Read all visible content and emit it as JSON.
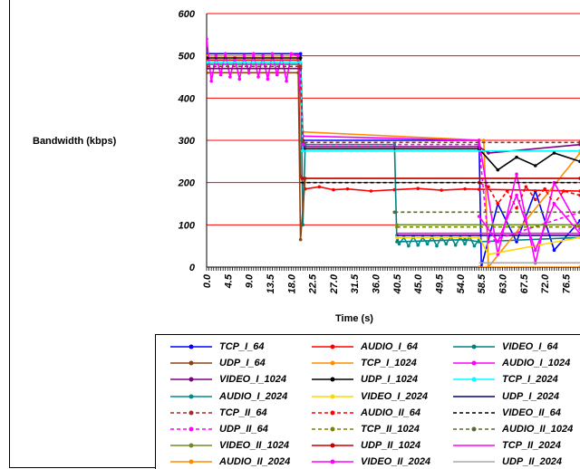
{
  "chart_data": {
    "type": "line",
    "ylabel": "Bandwidth (kbps)",
    "xlabel": "Time (s)",
    "ylim": [
      0,
      600
    ],
    "xlim": [
      0,
      79.5
    ],
    "yticks": [
      "0",
      "100",
      "200",
      "300",
      "400",
      "500",
      "600"
    ],
    "xticks": [
      "0.0",
      "4.5",
      "9.0",
      "13.5",
      "18.0",
      "22.5",
      "27.0",
      "31.5",
      "36.0",
      "40.5",
      "45.0",
      "49.5",
      "54.0",
      "58.5",
      "63.0",
      "67.5",
      "72.0",
      "76.5"
    ],
    "grid": true,
    "grid_color": "#ff0000",
    "legend_position": "bottom-right",
    "series": [
      {
        "name": "TCP_I_64",
        "color": "#0000ff",
        "dash": "solid",
        "marker": "diamond",
        "x": [
          0,
          20,
          20.5,
          58,
          58.5,
          62,
          66,
          70,
          74,
          79.5
        ],
        "y": [
          505,
          505,
          300,
          300,
          0,
          150,
          60,
          180,
          40,
          110
        ]
      },
      {
        "name": "AUDIO_I_64",
        "color": "#ff0000",
        "dash": "solid",
        "marker": "square",
        "x": [
          0,
          19.5,
          20,
          21,
          24,
          27,
          30,
          35,
          40,
          45,
          50,
          55,
          58,
          79.5
        ],
        "y": [
          490,
          490,
          215,
          185,
          190,
          183,
          185,
          180,
          183,
          186,
          182,
          185,
          184,
          180
        ]
      },
      {
        "name": "VIDEO_I_64",
        "color": "#008080",
        "dash": "solid",
        "marker": "triangle",
        "x": [
          0,
          20,
          20.5,
          21,
          40,
          40.5,
          55,
          58,
          79.5
        ],
        "y": [
          480,
          480,
          100,
          290,
          290,
          60,
          65,
          60,
          70
        ]
      },
      {
        "name": "UDP_I_64",
        "color": "#8b4513",
        "dash": "solid",
        "marker": "x",
        "x": [
          0,
          19.5,
          20,
          21,
          79.5
        ],
        "y": [
          460,
          460,
          65,
          210,
          210
        ]
      },
      {
        "name": "TCP_I_1024",
        "color": "#ff8c00",
        "dash": "solid",
        "marker": "star",
        "x": [
          0,
          19.5,
          20.5,
          59,
          60,
          79.5
        ],
        "y": [
          500,
          500,
          320,
          300,
          0,
          270
        ]
      },
      {
        "name": "AUDIO_I_1024",
        "color": "#ff00ff",
        "dash": "solid",
        "marker": "circle",
        "x": [
          0,
          1,
          2,
          3,
          4,
          5,
          6,
          7,
          8,
          9,
          10,
          11,
          12,
          13,
          14,
          15,
          16,
          17,
          18,
          19.5,
          20.5,
          58,
          62,
          66,
          70,
          74,
          79.5
        ],
        "y": [
          540,
          440,
          500,
          455,
          505,
          450,
          495,
          445,
          500,
          460,
          505,
          450,
          500,
          445,
          505,
          455,
          500,
          440,
          505,
          500,
          310,
          300,
          30,
          220,
          10,
          200,
          90
        ]
      },
      {
        "name": "VIDEO_I_1024",
        "color": "#800080",
        "dash": "solid",
        "marker": "circle",
        "x": [
          0,
          20,
          20.5,
          58,
          60,
          79.5
        ],
        "y": [
          470,
          470,
          285,
          285,
          270,
          290
        ]
      },
      {
        "name": "UDP_I_1024",
        "color": "#000000",
        "dash": "solid",
        "marker": "x",
        "x": [
          0,
          20,
          20.5,
          58,
          62,
          66,
          70,
          74,
          79.5
        ],
        "y": [
          495,
          495,
          280,
          280,
          230,
          260,
          240,
          270,
          250
        ]
      },
      {
        "name": "TCP_I_2024",
        "color": "#00ffff",
        "dash": "solid",
        "marker": "star",
        "x": [
          0,
          20,
          20.5,
          79.5
        ],
        "y": [
          485,
          485,
          275,
          275
        ]
      },
      {
        "name": "AUDIO_I_2024",
        "color": "#008b8b",
        "dash": "solid",
        "marker": "circle",
        "x": [
          40.5,
          41,
          42,
          43,
          44,
          45,
          46,
          47,
          48,
          49,
          50,
          51,
          52,
          53,
          54,
          55,
          56,
          57,
          58
        ],
        "y": [
          75,
          55,
          70,
          50,
          72,
          52,
          70,
          55,
          72,
          50,
          70,
          55,
          72,
          52,
          70,
          55,
          72,
          50,
          65
        ]
      },
      {
        "name": "VIDEO_I_2024",
        "color": "#ffd700",
        "dash": "solid",
        "marker": "circle",
        "x": [
          40.5,
          58,
          60,
          79.5
        ],
        "y": [
          70,
          70,
          30,
          70
        ]
      },
      {
        "name": "UDP_I_2024",
        "color": "#000080",
        "dash": "solid",
        "marker": "none",
        "x": [
          40.5,
          79.5
        ],
        "y": [
          75,
          75
        ]
      },
      {
        "name": "TCP_II_64",
        "color": "#a52a2a",
        "dash": "dash",
        "marker": "square",
        "x": [
          0,
          20,
          20.5,
          79.5
        ],
        "y": [
          475,
          475,
          295,
          295
        ]
      },
      {
        "name": "AUDIO_II_64",
        "color": "#ff0000",
        "dash": "dash",
        "marker": "square",
        "x": [
          58,
          60,
          62,
          64,
          66,
          68,
          70,
          72,
          74,
          76,
          79.5
        ],
        "y": [
          200,
          190,
          150,
          180,
          140,
          190,
          160,
          185,
          150,
          180,
          170
        ]
      },
      {
        "name": "VIDEO_II_64",
        "color": "#000000",
        "dash": "dash",
        "marker": "none",
        "x": [
          20,
          20.5,
          79.5
        ],
        "y": [
          200,
          200,
          200
        ]
      },
      {
        "name": "UDP_II_64",
        "color": "#ff00ff",
        "dash": "dash",
        "marker": "square",
        "x": [
          20.5,
          58,
          60,
          79.5
        ],
        "y": [
          290,
          290,
          60,
          130
        ]
      },
      {
        "name": "TCP_II_1024",
        "color": "#808000",
        "dash": "dash",
        "marker": "circle",
        "x": [
          40.5,
          79.5
        ],
        "y": [
          95,
          95
        ]
      },
      {
        "name": "AUDIO_II_1024",
        "color": "#556b2f",
        "dash": "dash",
        "marker": "triangle",
        "x": [
          40,
          79.5
        ],
        "y": [
          130,
          130
        ]
      },
      {
        "name": "VIDEO_II_1024",
        "color": "#6b8e23",
        "dash": "solid",
        "marker": "square",
        "x": [
          40.5,
          79.5
        ],
        "y": [
          100,
          100
        ]
      },
      {
        "name": "UDP_II_1024",
        "color": "#cc0000",
        "dash": "solid",
        "marker": "square",
        "x": [
          20.5,
          79.5
        ],
        "y": [
          210,
          210
        ]
      },
      {
        "name": "TCP_II_2024",
        "color": "#ff00ff",
        "dash": "solid",
        "marker": "none",
        "x": [
          40.5,
          79.5
        ],
        "y": [
          80,
          80
        ]
      },
      {
        "name": "AUDIO_II_2024",
        "color": "#ff8c00",
        "dash": "solid",
        "marker": "square",
        "x": [
          58,
          79.5
        ],
        "y": [
          0,
          0
        ]
      },
      {
        "name": "VIDEO_II_2024",
        "color": "#ff00ff",
        "dash": "solid",
        "marker": "circle",
        "x": [
          58,
          62,
          66,
          70,
          74,
          79.5
        ],
        "y": [
          120,
          60,
          170,
          40,
          150,
          80
        ]
      },
      {
        "name": "UDP_II_2024",
        "color": "#a9a9a9",
        "dash": "solid",
        "marker": "none",
        "x": [
          58,
          79.5
        ],
        "y": [
          10,
          10
        ]
      }
    ]
  }
}
